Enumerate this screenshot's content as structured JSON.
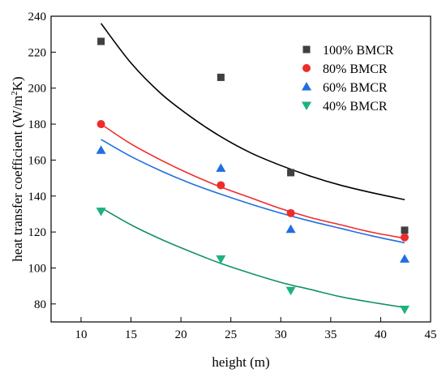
{
  "chart_data": {
    "type": "scatter",
    "xlabel": "height (m)",
    "ylabel_main": "heat transfer coefficient (W/m",
    "ylabel_sup": "2",
    "ylabel_end": "K)",
    "xlim": [
      7,
      45
    ],
    "ylim": [
      70,
      240
    ],
    "xticks": [
      10,
      15,
      20,
      25,
      30,
      35,
      40,
      45
    ],
    "yticks": [
      80,
      100,
      120,
      140,
      160,
      180,
      200,
      220,
      240
    ],
    "grid": false,
    "legend_position": "top-right",
    "series": [
      {
        "name": "100% BMCR",
        "marker": "square",
        "color": "#404040",
        "line_color": "#000000",
        "points": [
          {
            "x": 12,
            "y": 226
          },
          {
            "x": 24,
            "y": 206
          },
          {
            "x": 31,
            "y": 153
          },
          {
            "x": 42.4,
            "y": 121
          }
        ],
        "fit": [
          {
            "x": 12,
            "y": 236
          },
          {
            "x": 15,
            "y": 214
          },
          {
            "x": 18,
            "y": 197
          },
          {
            "x": 21,
            "y": 184
          },
          {
            "x": 24,
            "y": 173
          },
          {
            "x": 27,
            "y": 164
          },
          {
            "x": 30,
            "y": 157
          },
          {
            "x": 33,
            "y": 151
          },
          {
            "x": 36,
            "y": 146
          },
          {
            "x": 39,
            "y": 142
          },
          {
            "x": 42.4,
            "y": 138
          }
        ]
      },
      {
        "name": "80% BMCR",
        "marker": "circle",
        "color": "#ee2c2c",
        "line_color": "#ee2c2c",
        "points": [
          {
            "x": 12,
            "y": 180
          },
          {
            "x": 24,
            "y": 146
          },
          {
            "x": 31,
            "y": 130.5
          },
          {
            "x": 42.4,
            "y": 117
          }
        ],
        "fit": [
          {
            "x": 12,
            "y": 180
          },
          {
            "x": 15,
            "y": 169
          },
          {
            "x": 18,
            "y": 160
          },
          {
            "x": 21,
            "y": 152
          },
          {
            "x": 24,
            "y": 145
          },
          {
            "x": 27,
            "y": 139
          },
          {
            "x": 30,
            "y": 133
          },
          {
            "x": 33,
            "y": 128
          },
          {
            "x": 36,
            "y": 124
          },
          {
            "x": 39,
            "y": 120
          },
          {
            "x": 42.4,
            "y": 116.5
          }
        ]
      },
      {
        "name": "60% BMCR",
        "marker": "triangle-up",
        "color": "#1f6fe0",
        "line_color": "#1f6fe0",
        "points": [
          {
            "x": 12,
            "y": 165.5
          },
          {
            "x": 24,
            "y": 155.5
          },
          {
            "x": 31,
            "y": 121.5
          },
          {
            "x": 42.4,
            "y": 105
          }
        ],
        "fit": [
          {
            "x": 12,
            "y": 171.5
          },
          {
            "x": 15,
            "y": 162
          },
          {
            "x": 18,
            "y": 154
          },
          {
            "x": 21,
            "y": 147
          },
          {
            "x": 24,
            "y": 141
          },
          {
            "x": 27,
            "y": 135.5
          },
          {
            "x": 30,
            "y": 130.5
          },
          {
            "x": 33,
            "y": 126
          },
          {
            "x": 36,
            "y": 122
          },
          {
            "x": 39,
            "y": 118
          },
          {
            "x": 42.4,
            "y": 114
          }
        ]
      },
      {
        "name": "40% BMCR",
        "marker": "triangle-down",
        "color": "#1db37a",
        "line_color": "#13906a",
        "points": [
          {
            "x": 12,
            "y": 131.5
          },
          {
            "x": 24,
            "y": 105
          },
          {
            "x": 31,
            "y": 87.5
          },
          {
            "x": 42.4,
            "y": 77
          }
        ],
        "fit": [
          {
            "x": 12,
            "y": 133.5
          },
          {
            "x": 15,
            "y": 124
          },
          {
            "x": 18,
            "y": 116
          },
          {
            "x": 21,
            "y": 109
          },
          {
            "x": 24,
            "y": 102.5
          },
          {
            "x": 27,
            "y": 97
          },
          {
            "x": 30,
            "y": 92
          },
          {
            "x": 33,
            "y": 88
          },
          {
            "x": 36,
            "y": 84
          },
          {
            "x": 39,
            "y": 81
          },
          {
            "x": 42.4,
            "y": 78
          }
        ]
      }
    ]
  }
}
